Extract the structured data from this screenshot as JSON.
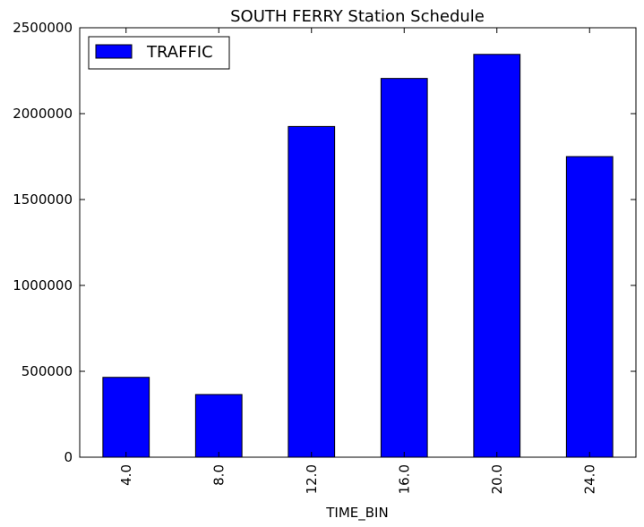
{
  "chart_data": {
    "type": "bar",
    "title": "SOUTH FERRY Station Schedule",
    "xlabel": "TIME_BIN",
    "ylabel": "",
    "categories": [
      "4.0",
      "8.0",
      "12.0",
      "16.0",
      "20.0",
      "24.0"
    ],
    "series": [
      {
        "name": "TRAFFIC",
        "values": [
          465000,
          365000,
          1925000,
          2205000,
          2345000,
          1750000
        ],
        "color": "#0000ff"
      }
    ],
    "ylim": [
      0,
      2500000
    ],
    "yticks": [
      0,
      500000,
      1000000,
      1500000,
      2000000,
      2500000
    ],
    "ytick_labels": [
      "0",
      "500000",
      "1000000",
      "1500000",
      "2000000",
      "2500000"
    ],
    "grid": false,
    "legend_position": "top-left"
  }
}
